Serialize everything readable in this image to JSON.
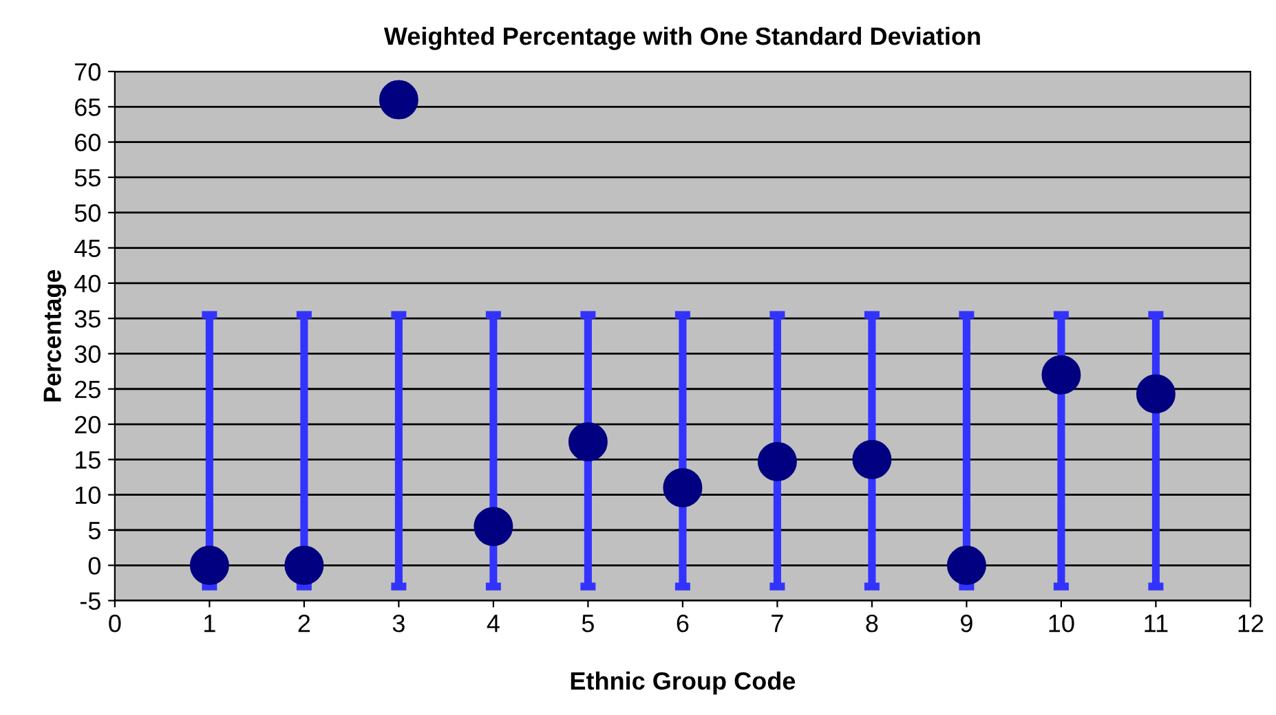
{
  "chart_data": {
    "type": "scatter",
    "title": "Weighted Percentage with One Standard Deviation",
    "xlabel": "Ethnic Group Code",
    "ylabel": "Percentage",
    "x": [
      1,
      2,
      3,
      4,
      5,
      6,
      7,
      8,
      9,
      10,
      11
    ],
    "series": [
      {
        "color": "#000080",
        "values": [
          0,
          0,
          66,
          5.5,
          17.5,
          11,
          14.7,
          15,
          0,
          27,
          24.3
        ],
        "errors": [
          [
            -3,
            35.5
          ],
          [
            -3,
            35.5
          ],
          [
            -3,
            35.5
          ],
          [
            -3,
            35.5
          ],
          [
            -3,
            35.5
          ],
          [
            -3,
            35.5
          ],
          [
            -3,
            35.5
          ],
          [
            -3,
            35.5
          ],
          [
            -3,
            35.5
          ],
          [
            -3,
            35.5
          ],
          [
            -3,
            35.5
          ]
        ]
      }
    ],
    "xlim": [
      0,
      12
    ],
    "xticks": [
      0,
      1,
      2,
      3,
      4,
      5,
      6,
      7,
      8,
      9,
      10,
      11,
      12
    ],
    "ylim": [
      -5,
      70
    ],
    "yticks": [
      -5,
      0,
      5,
      10,
      15,
      20,
      25,
      30,
      35,
      40,
      45,
      50,
      55,
      60,
      65,
      70
    ],
    "grid": "y",
    "marker": "circle",
    "legend": false
  }
}
